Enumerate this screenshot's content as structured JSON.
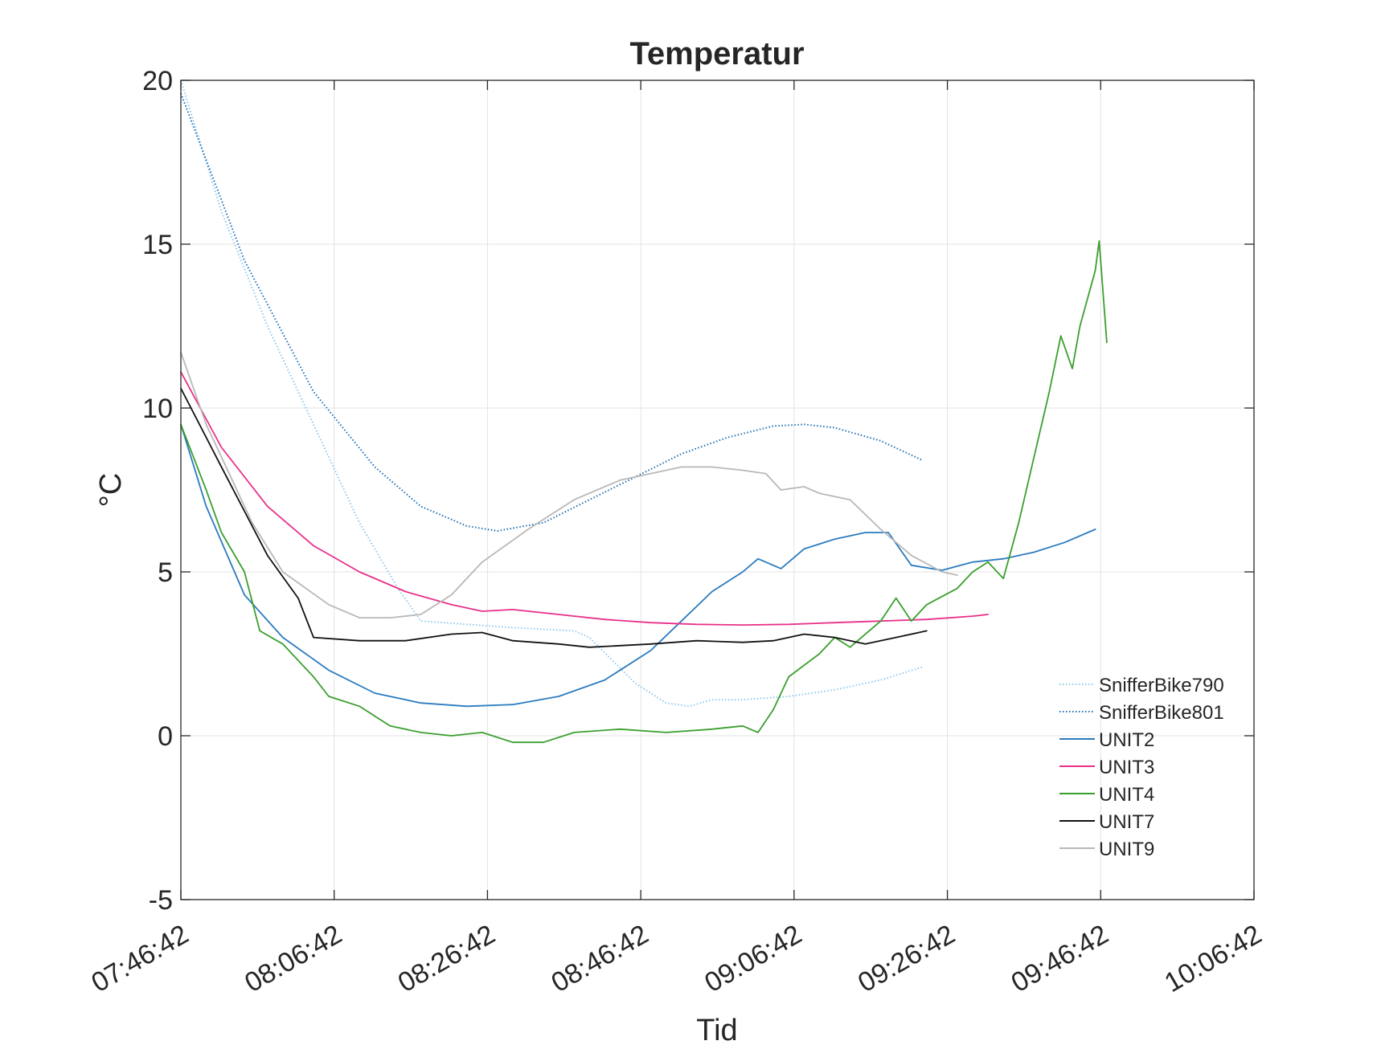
{
  "chart_data": {
    "type": "line",
    "title": "Temperatur",
    "xlabel": "Tid",
    "ylabel": "°C",
    "ylim": [
      -5,
      20
    ],
    "yticks": [
      -5,
      0,
      5,
      10,
      15,
      20
    ],
    "xlim": [
      "07:46:42",
      "10:06:42"
    ],
    "xticks": [
      "07:46:42",
      "08:06:42",
      "08:26:42",
      "08:46:42",
      "09:06:42",
      "09:26:42",
      "09:46:42",
      "10:06:42"
    ],
    "grid": true,
    "legend_position": "bottom-right",
    "series": [
      {
        "name": "SnifferBike790",
        "color": "#8EC9EE",
        "style": "dotted",
        "points": [
          [
            "07:46:42",
            20.0
          ],
          [
            "07:52:00",
            16.0
          ],
          [
            "07:58:00",
            12.5
          ],
          [
            "08:04:00",
            9.5
          ],
          [
            "08:10:00",
            6.5
          ],
          [
            "08:15:00",
            4.5
          ],
          [
            "08:18:00",
            3.5
          ],
          [
            "08:30:00",
            3.3
          ],
          [
            "08:38:00",
            3.2
          ],
          [
            "08:40:00",
            3.0
          ],
          [
            "08:46:00",
            1.6
          ],
          [
            "08:50:00",
            1.0
          ],
          [
            "08:53:00",
            0.9
          ],
          [
            "08:56:00",
            1.1
          ],
          [
            "09:00:00",
            1.1
          ],
          [
            "09:06:00",
            1.2
          ],
          [
            "09:12:00",
            1.4
          ],
          [
            "09:18:00",
            1.7
          ],
          [
            "09:23:30",
            2.1
          ]
        ]
      },
      {
        "name": "SnifferBike801",
        "color": "#1F6FB5",
        "style": "dotted",
        "points": [
          [
            "07:46:42",
            19.6
          ],
          [
            "07:55:00",
            14.5
          ],
          [
            "08:04:00",
            10.5
          ],
          [
            "08:12:00",
            8.2
          ],
          [
            "08:18:00",
            7.0
          ],
          [
            "08:24:00",
            6.4
          ],
          [
            "08:28:00",
            6.25
          ],
          [
            "08:34:00",
            6.5
          ],
          [
            "08:40:00",
            7.2
          ],
          [
            "08:46:00",
            7.9
          ],
          [
            "08:52:00",
            8.6
          ],
          [
            "08:58:00",
            9.1
          ],
          [
            "09:04:00",
            9.45
          ],
          [
            "09:08:00",
            9.5
          ],
          [
            "09:12:00",
            9.4
          ],
          [
            "09:18:00",
            9.0
          ],
          [
            "09:23:30",
            8.4
          ]
        ]
      },
      {
        "name": "UNIT2",
        "color": "#2B7BBF",
        "style": "solid",
        "points": [
          [
            "07:46:42",
            9.5
          ],
          [
            "07:50:00",
            7.0
          ],
          [
            "07:55:00",
            4.3
          ],
          [
            "08:00:00",
            3.0
          ],
          [
            "08:06:00",
            2.0
          ],
          [
            "08:12:00",
            1.3
          ],
          [
            "08:18:00",
            1.0
          ],
          [
            "08:24:00",
            0.9
          ],
          [
            "08:30:00",
            0.95
          ],
          [
            "08:36:00",
            1.2
          ],
          [
            "08:42:00",
            1.7
          ],
          [
            "08:48:00",
            2.6
          ],
          [
            "08:52:00",
            3.5
          ],
          [
            "08:56:00",
            4.4
          ],
          [
            "09:00:00",
            5.0
          ],
          [
            "09:02:00",
            5.4
          ],
          [
            "09:05:00",
            5.1
          ],
          [
            "09:08:00",
            5.7
          ],
          [
            "09:12:00",
            6.0
          ],
          [
            "09:16:00",
            6.2
          ],
          [
            "09:19:00",
            6.2
          ],
          [
            "09:22:00",
            5.2
          ],
          [
            "09:26:00",
            5.05
          ],
          [
            "09:30:00",
            5.3
          ],
          [
            "09:34:00",
            5.4
          ],
          [
            "09:38:00",
            5.6
          ],
          [
            "09:42:00",
            5.9
          ],
          [
            "09:46:00",
            6.3
          ]
        ]
      },
      {
        "name": "UNIT3",
        "color": "#E8308A",
        "style": "solid",
        "points": [
          [
            "07:46:42",
            11.1
          ],
          [
            "07:52:00",
            8.8
          ],
          [
            "07:58:00",
            7.0
          ],
          [
            "08:04:00",
            5.8
          ],
          [
            "08:10:00",
            5.0
          ],
          [
            "08:16:00",
            4.4
          ],
          [
            "08:22:00",
            4.0
          ],
          [
            "08:26:00",
            3.8
          ],
          [
            "08:30:00",
            3.85
          ],
          [
            "08:36:00",
            3.7
          ],
          [
            "08:42:00",
            3.55
          ],
          [
            "08:48:00",
            3.45
          ],
          [
            "08:54:00",
            3.4
          ],
          [
            "09:00:00",
            3.38
          ],
          [
            "09:06:00",
            3.4
          ],
          [
            "09:12:00",
            3.45
          ],
          [
            "09:18:00",
            3.5
          ],
          [
            "09:24:00",
            3.55
          ],
          [
            "09:30:00",
            3.65
          ],
          [
            "09:32:00",
            3.7
          ]
        ]
      },
      {
        "name": "UNIT4",
        "color": "#3A9F2E",
        "style": "solid",
        "points": [
          [
            "07:46:42",
            9.5
          ],
          [
            "07:50:00",
            7.5
          ],
          [
            "07:52:00",
            6.2
          ],
          [
            "07:55:00",
            5.0
          ],
          [
            "07:57:00",
            3.2
          ],
          [
            "08:00:00",
            2.8
          ],
          [
            "08:04:00",
            1.8
          ],
          [
            "08:06:00",
            1.2
          ],
          [
            "08:10:00",
            0.9
          ],
          [
            "08:14:00",
            0.3
          ],
          [
            "08:18:00",
            0.1
          ],
          [
            "08:22:00",
            0.0
          ],
          [
            "08:26:00",
            0.1
          ],
          [
            "08:30:00",
            -0.2
          ],
          [
            "08:34:00",
            -0.2
          ],
          [
            "08:38:00",
            0.1
          ],
          [
            "08:44:00",
            0.2
          ],
          [
            "08:50:00",
            0.1
          ],
          [
            "08:56:00",
            0.2
          ],
          [
            "09:00:00",
            0.3
          ],
          [
            "09:02:00",
            0.1
          ],
          [
            "09:04:00",
            0.8
          ],
          [
            "09:06:00",
            1.8
          ],
          [
            "09:10:00",
            2.5
          ],
          [
            "09:12:00",
            3.0
          ],
          [
            "09:14:00",
            2.7
          ],
          [
            "09:18:00",
            3.5
          ],
          [
            "09:20:00",
            4.2
          ],
          [
            "09:22:00",
            3.5
          ],
          [
            "09:24:00",
            4.0
          ],
          [
            "09:28:00",
            4.5
          ],
          [
            "09:30:00",
            5.0
          ],
          [
            "09:32:00",
            5.3
          ],
          [
            "09:34:00",
            4.8
          ],
          [
            "09:36:00",
            6.5
          ],
          [
            "09:38:00",
            8.5
          ],
          [
            "09:40:00",
            10.5
          ],
          [
            "09:41:30",
            12.2
          ],
          [
            "09:43:00",
            11.2
          ],
          [
            "09:44:00",
            12.5
          ],
          [
            "09:46:00",
            14.2
          ],
          [
            "09:46:30",
            15.1
          ],
          [
            "09:47:30",
            12.0
          ]
        ]
      },
      {
        "name": "UNIT7",
        "color": "#111111",
        "style": "solid",
        "points": [
          [
            "07:46:42",
            10.6
          ],
          [
            "07:52:00",
            8.2
          ],
          [
            "07:58:00",
            5.5
          ],
          [
            "08:02:00",
            4.2
          ],
          [
            "08:04:00",
            3.0
          ],
          [
            "08:10:00",
            2.9
          ],
          [
            "08:16:00",
            2.9
          ],
          [
            "08:22:00",
            3.1
          ],
          [
            "08:26:00",
            3.15
          ],
          [
            "08:30:00",
            2.9
          ],
          [
            "08:36:00",
            2.8
          ],
          [
            "08:40:00",
            2.7
          ],
          [
            "08:44:00",
            2.75
          ],
          [
            "08:48:00",
            2.8
          ],
          [
            "08:54:00",
            2.9
          ],
          [
            "09:00:00",
            2.85
          ],
          [
            "09:04:00",
            2.9
          ],
          [
            "09:08:00",
            3.1
          ],
          [
            "09:12:00",
            3.0
          ],
          [
            "09:16:00",
            2.8
          ],
          [
            "09:20:00",
            3.0
          ],
          [
            "09:24:00",
            3.2
          ]
        ]
      },
      {
        "name": "UNIT9",
        "color": "#B8B8B8",
        "style": "solid",
        "points": [
          [
            "07:46:42",
            11.7
          ],
          [
            "07:50:00",
            9.5
          ],
          [
            "07:56:00",
            6.5
          ],
          [
            "08:00:00",
            5.0
          ],
          [
            "08:06:00",
            4.0
          ],
          [
            "08:10:00",
            3.6
          ],
          [
            "08:14:00",
            3.6
          ],
          [
            "08:18:00",
            3.7
          ],
          [
            "08:22:00",
            4.3
          ],
          [
            "08:26:00",
            5.3
          ],
          [
            "08:32:00",
            6.3
          ],
          [
            "08:38:00",
            7.2
          ],
          [
            "08:44:00",
            7.8
          ],
          [
            "08:48:00",
            8.0
          ],
          [
            "08:52:00",
            8.2
          ],
          [
            "08:56:00",
            8.2
          ],
          [
            "09:00:00",
            8.1
          ],
          [
            "09:03:00",
            8.0
          ],
          [
            "09:05:00",
            7.5
          ],
          [
            "09:08:00",
            7.6
          ],
          [
            "09:10:00",
            7.4
          ],
          [
            "09:14:00",
            7.2
          ],
          [
            "09:18:00",
            6.3
          ],
          [
            "09:22:00",
            5.5
          ],
          [
            "09:26:00",
            5.0
          ],
          [
            "09:28:00",
            4.9
          ]
        ]
      }
    ]
  }
}
